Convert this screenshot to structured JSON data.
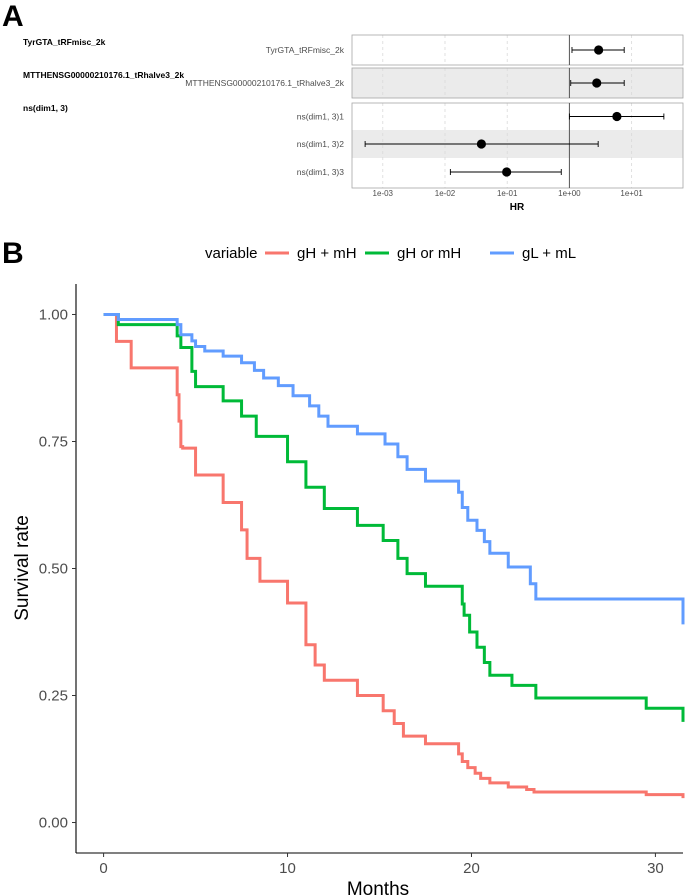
{
  "panel_labels": {
    "a": "A",
    "b": "B"
  },
  "chart_data": [
    {
      "type": "forest",
      "xlabel": "HR",
      "x_scale": "log10",
      "xlim": [
        0.00032,
        67
      ],
      "reference_value": 1,
      "tick_labels": [
        "1e-03",
        "1e-02",
        "1e-01",
        "1e+00",
        "1e+01"
      ],
      "tick_values": [
        0.001,
        0.01,
        0.1,
        1,
        10
      ],
      "groups": [
        {
          "name": "TyrGTA_tRFmisc_2k",
          "shaded": false,
          "rows": [
            {
              "label": "TyrGTA_tRFmisc_2k",
              "hr": 2.95,
              "lower": 1.1,
              "upper": 7.6,
              "shaded": false
            }
          ]
        },
        {
          "name": "MTTHENSG00000210176.1_tRhalve3_2k",
          "shaded": true,
          "rows": [
            {
              "label": "MTTHENSG00000210176.1_tRhalve3_2k",
              "hr": 2.75,
              "lower": 1.05,
              "upper": 7.6,
              "shaded": true
            }
          ]
        },
        {
          "name": "ns(dim1, 3)",
          "shaded": false,
          "rows": [
            {
              "label": "ns(dim1, 3)1",
              "hr": 5.8,
              "lower": 1.0,
              "upper": 33,
              "shaded": false
            },
            {
              "label": "ns(dim1, 3)2",
              "hr": 0.0385,
              "lower": 0.00052,
              "upper": 2.9,
              "shaded": true
            },
            {
              "label": "ns(dim1, 3)3",
              "hr": 0.098,
              "lower": 0.0122,
              "upper": 0.74,
              "shaded": false
            }
          ]
        }
      ]
    },
    {
      "type": "step",
      "xlabel": "Months",
      "ylabel": "Survival rate",
      "xlim": [
        -1.5,
        31.5
      ],
      "ylim": [
        -0.06,
        1.06
      ],
      "x_ticks": [
        0,
        10,
        20,
        30
      ],
      "x_tick_labels": [
        "0",
        "10",
        "20",
        "30"
      ],
      "y_ticks": [
        0,
        0.25,
        0.5,
        0.75,
        1
      ],
      "y_tick_labels": [
        "0.00",
        "0.25",
        "0.50",
        "0.75",
        "1.00"
      ],
      "legend_title": "variable",
      "legend_position": "top",
      "series": [
        {
          "name": "gH + mH",
          "color": "#F8766D",
          "x": [
            0,
            0.7,
            1.5,
            4.0,
            4.1,
            4.2,
            4.3,
            5.0,
            6.5,
            7.5,
            7.8,
            8.5,
            10.0,
            11.0,
            11.5,
            12.0,
            13.8,
            15.2,
            15.8,
            16.3,
            17.5,
            19.3,
            19.5,
            19.8,
            20.2,
            20.5,
            21.0,
            22.0,
            23.0,
            23.4,
            29.5,
            31.5
          ],
          "y": [
            1.0,
            0.947,
            0.895,
            0.842,
            0.79,
            0.74,
            0.737,
            0.684,
            0.63,
            0.576,
            0.52,
            0.475,
            0.432,
            0.35,
            0.31,
            0.28,
            0.25,
            0.22,
            0.195,
            0.17,
            0.155,
            0.135,
            0.12,
            0.108,
            0.097,
            0.087,
            0.078,
            0.07,
            0.065,
            0.06,
            0.055,
            0.048
          ]
        },
        {
          "name": "gH or mH",
          "color": "#00BA38",
          "x": [
            0,
            0.8,
            4.0,
            4.2,
            4.8,
            5.0,
            6.5,
            7.5,
            8.3,
            10.0,
            11.0,
            12.0,
            13.8,
            15.2,
            16.0,
            16.5,
            17.5,
            19.5,
            19.6,
            19.9,
            20.3,
            20.7,
            21.0,
            22.2,
            23.5,
            29.5,
            31.5
          ],
          "y": [
            1.0,
            0.98,
            0.958,
            0.935,
            0.888,
            0.858,
            0.83,
            0.8,
            0.76,
            0.71,
            0.66,
            0.618,
            0.585,
            0.555,
            0.52,
            0.49,
            0.465,
            0.43,
            0.408,
            0.375,
            0.345,
            0.315,
            0.29,
            0.27,
            0.245,
            0.225,
            0.198
          ]
        },
        {
          "name": "gL + mL",
          "color": "#619CFF",
          "x": [
            0,
            0.8,
            4.0,
            4.2,
            4.8,
            5.0,
            5.5,
            6.5,
            7.5,
            8.2,
            8.7,
            9.5,
            10.3,
            11.2,
            11.7,
            12.2,
            13.8,
            15.3,
            16.0,
            16.5,
            17.5,
            19.3,
            19.5,
            19.8,
            20.3,
            20.7,
            21.0,
            22.0,
            23.2,
            23.5,
            29.5,
            31.5
          ],
          "y": [
            1.0,
            0.99,
            0.98,
            0.96,
            0.948,
            0.937,
            0.928,
            0.918,
            0.905,
            0.89,
            0.875,
            0.86,
            0.84,
            0.82,
            0.8,
            0.78,
            0.765,
            0.745,
            0.72,
            0.695,
            0.672,
            0.65,
            0.62,
            0.595,
            0.575,
            0.553,
            0.53,
            0.503,
            0.47,
            0.44,
            0.44,
            0.39
          ]
        }
      ]
    }
  ]
}
